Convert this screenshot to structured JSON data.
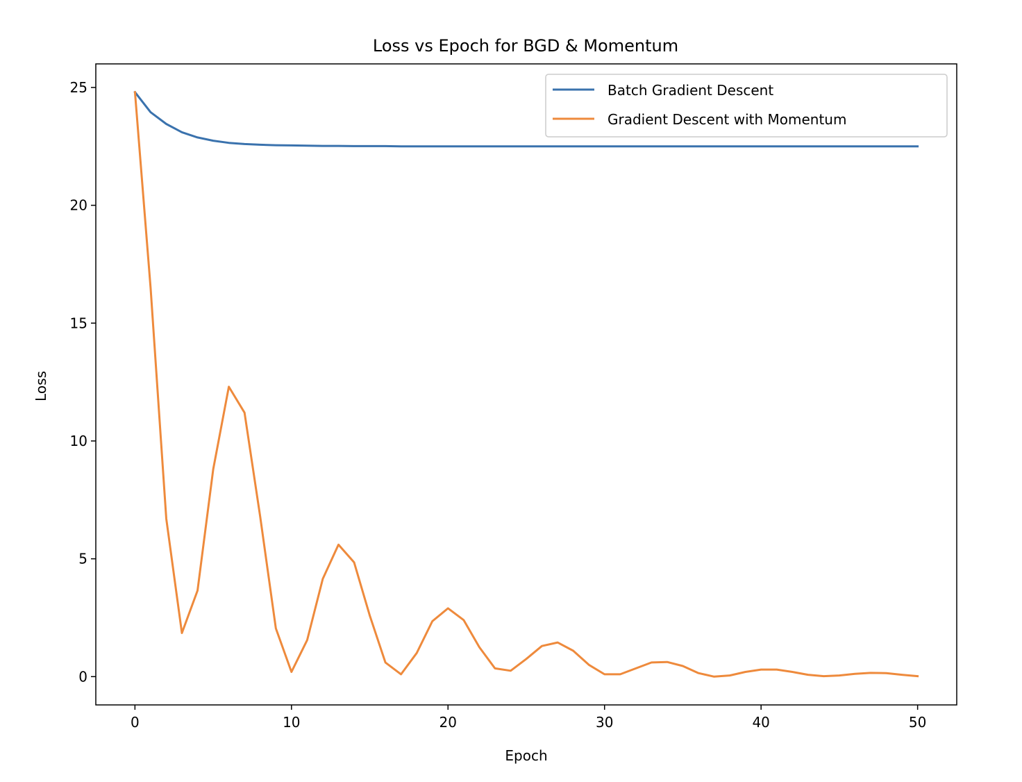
{
  "chart_data": {
    "type": "line",
    "title": "Loss vs Epoch for  BGD & Momentum",
    "xlabel": "Epoch",
    "ylabel": "Loss",
    "xlim": [
      -2.5,
      52.5
    ],
    "ylim": [
      -1.2,
      26.0
    ],
    "xticks": [
      0,
      10,
      20,
      30,
      40,
      50
    ],
    "yticks": [
      0,
      5,
      10,
      15,
      20,
      25
    ],
    "grid": false,
    "legend_position": "top-right",
    "x": [
      0,
      1,
      2,
      3,
      4,
      5,
      6,
      7,
      8,
      9,
      10,
      11,
      12,
      13,
      14,
      15,
      16,
      17,
      18,
      19,
      20,
      21,
      22,
      23,
      24,
      25,
      26,
      27,
      28,
      29,
      30,
      31,
      32,
      33,
      34,
      35,
      36,
      37,
      38,
      39,
      40,
      41,
      42,
      43,
      44,
      45,
      46,
      47,
      48,
      49,
      50
    ],
    "series": [
      {
        "name": "Batch Gradient Descent",
        "color": "#3a72ad",
        "values": [
          24.8,
          23.95,
          23.45,
          23.1,
          22.88,
          22.74,
          22.65,
          22.6,
          22.57,
          22.55,
          22.54,
          22.53,
          22.52,
          22.52,
          22.51,
          22.51,
          22.51,
          22.5,
          22.5,
          22.5,
          22.5,
          22.5,
          22.5,
          22.5,
          22.5,
          22.5,
          22.5,
          22.5,
          22.5,
          22.5,
          22.5,
          22.5,
          22.5,
          22.5,
          22.5,
          22.5,
          22.5,
          22.5,
          22.5,
          22.5,
          22.5,
          22.5,
          22.5,
          22.5,
          22.5,
          22.5,
          22.5,
          22.5,
          22.5,
          22.5,
          22.5
        ]
      },
      {
        "name": "Gradient Descent with Momentum",
        "color": "#ee8a3c",
        "values": [
          24.8,
          16.5,
          6.7,
          1.85,
          3.65,
          8.8,
          12.3,
          11.2,
          6.8,
          2.05,
          0.2,
          1.55,
          4.15,
          5.6,
          4.85,
          2.6,
          0.6,
          0.1,
          1.0,
          2.35,
          2.9,
          2.4,
          1.25,
          0.35,
          0.25,
          0.75,
          1.3,
          1.45,
          1.1,
          0.5,
          0.1,
          0.1,
          0.35,
          0.6,
          0.62,
          0.45,
          0.15,
          0.0,
          0.05,
          0.2,
          0.3,
          0.3,
          0.2,
          0.08,
          0.02,
          0.05,
          0.12,
          0.16,
          0.15,
          0.08,
          0.02
        ]
      }
    ]
  }
}
